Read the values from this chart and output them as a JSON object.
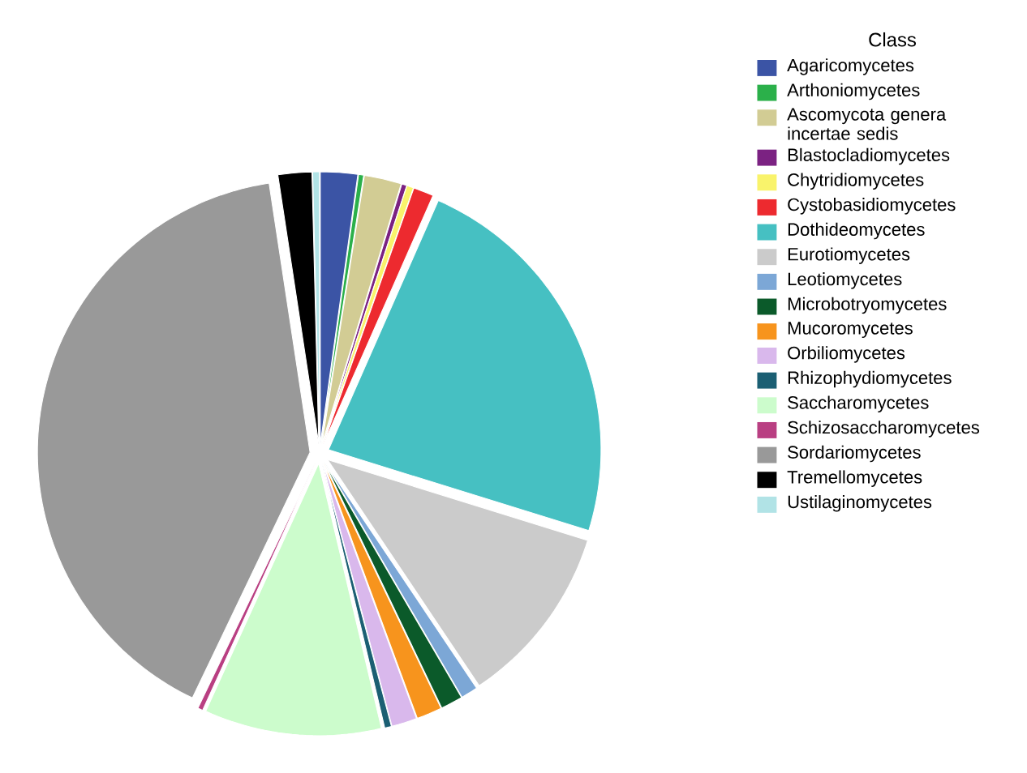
{
  "chart_data": {
    "type": "pie",
    "legend_title": "Class",
    "legend": "right",
    "categories": [
      "Agaricomycetes",
      "Arthoniomycetes",
      "Ascomycota genera incertae sedis",
      "Blastocladiomycetes",
      "Chytridiomycetes",
      "Cystobasidiomycetes",
      "Dothideomycetes",
      "Eurotiomycetes",
      "Leotiomycetes",
      "Microbotryomycetes",
      "Mucoromycetes",
      "Orbiliomycetes",
      "Rhizophydiomycetes",
      "Saccharomycetes",
      "Schizosaccharomycetes",
      "Sordariomycetes",
      "Tremellomycetes",
      "Ustilaginomycetes"
    ],
    "values": [
      2.2,
      0.3,
      2.2,
      0.3,
      0.4,
      1.2,
      23.2,
      10.8,
      1.0,
      1.3,
      1.5,
      1.5,
      0.4,
      10.5,
      0.3,
      40.5,
      2.0,
      0.4
    ],
    "colors": [
      "#3b54a5",
      "#2bb04a",
      "#d2cc94",
      "#7b2282",
      "#f9f36b",
      "#ed2a2f",
      "#46c0c2",
      "#cbcbcb",
      "#7ca7d6",
      "#0b5a2a",
      "#f7941d",
      "#d9b8ec",
      "#1b5f73",
      "#ccfccc",
      "#b93f82",
      "#999999",
      "#000000",
      "#b1e3e6"
    ]
  }
}
